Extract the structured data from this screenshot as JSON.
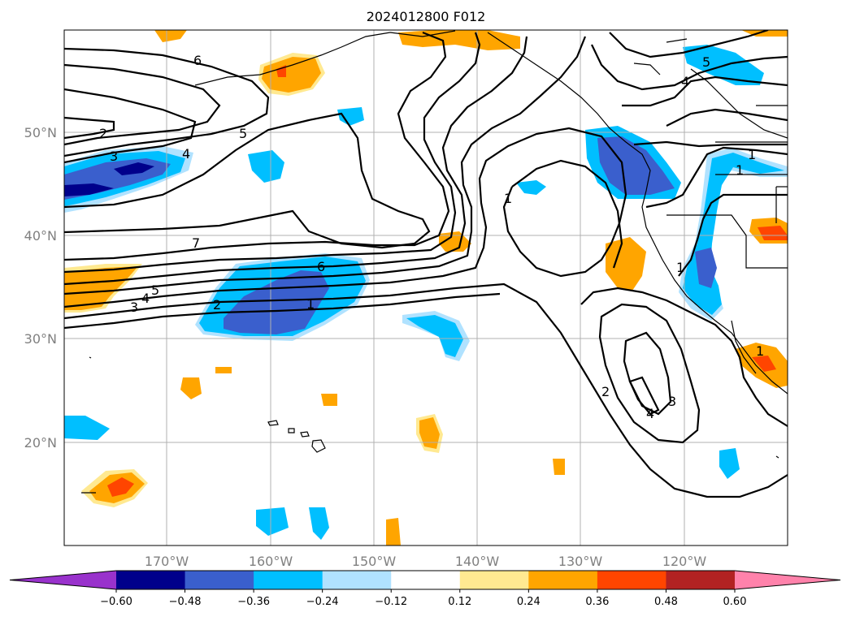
{
  "title": "2024012800 F012",
  "lon_labels": [
    "170°W",
    "160°W",
    "150°W",
    "140°W",
    "130°W",
    "120°W"
  ],
  "lat_labels": [
    "50°N",
    "40°N",
    "30°N",
    "20°N"
  ],
  "colorbar": {
    "ticks": [
      "−0.60",
      "−0.48",
      "−0.36",
      "−0.24",
      "−0.12",
      "0.12",
      "0.24",
      "0.36",
      "0.48",
      "0.60"
    ],
    "colors": [
      "#9932cc",
      "#00008b",
      "#3a5fcd",
      "#00bfff",
      "#b0e2ff",
      "#ffffff",
      "#ffe991",
      "#ffa500",
      "#ff4500",
      "#b22222",
      "#ff82ab"
    ]
  },
  "contour_labels": [
    "6",
    "2",
    "3",
    "4",
    "5",
    "7",
    "6",
    "5",
    "4",
    "3",
    "2",
    "1",
    "1",
    "1",
    "2",
    "3",
    "4",
    "5",
    "4",
    "1",
    "1",
    "1"
  ],
  "colors": {
    "strong_negative": "#3a5fcd",
    "negative": "#00bfff",
    "weak_negative": "#b0e2ff",
    "weak_positive": "#ffe991",
    "positive": "#ffa500",
    "strong_positive": "#ff4500",
    "grid": "#b0b0b0",
    "contour": "#000000"
  }
}
